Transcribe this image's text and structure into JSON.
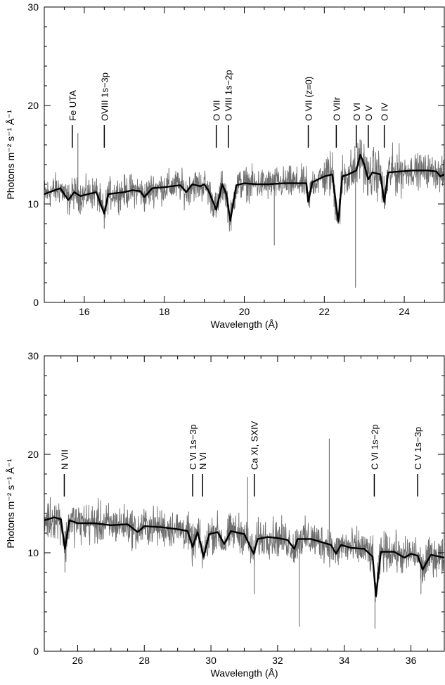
{
  "chart_data": [
    {
      "type": "line",
      "title": "",
      "xlabel": "Wavelength (Å)",
      "ylabel": "Photons m⁻² s⁻¹ Å⁻¹",
      "xlim": [
        15,
        25
      ],
      "ylim": [
        0,
        30
      ],
      "xticks": [
        16,
        18,
        20,
        22,
        24
      ],
      "yticks": [
        0,
        10,
        20,
        30
      ],
      "grid": false,
      "legend": "none",
      "series": [
        {
          "role": "data",
          "color": "#6e6e6e",
          "x": [
            15.0,
            15.5,
            15.84,
            16.0,
            16.5,
            17.0,
            17.5,
            18.0,
            18.5,
            19.0,
            19.3,
            19.5,
            19.65,
            20.0,
            20.5,
            20.75,
            21.0,
            21.6,
            22.0,
            22.35,
            22.78,
            23.0,
            23.5,
            24.0,
            24.5,
            25.0
          ],
          "y": [
            11.5,
            11.8,
            17.2,
            11.0,
            7.5,
            11.6,
            11.3,
            11.9,
            11.6,
            12.0,
            9.3,
            12.1,
            8.2,
            11.9,
            12.3,
            5.8,
            12.0,
            9.8,
            12.8,
            8.0,
            1.5,
            13.5,
            9.5,
            13.2,
            13.4,
            13.0
          ]
        },
        {
          "role": "model",
          "color": "#000000",
          "x": [
            15.0,
            15.2,
            15.4,
            15.6,
            15.75,
            15.9,
            16.1,
            16.3,
            16.5,
            16.6,
            16.8,
            17.0,
            17.2,
            17.4,
            17.5,
            17.7,
            18.0,
            18.2,
            18.4,
            18.55,
            18.7,
            18.9,
            19.0,
            19.1,
            19.3,
            19.45,
            19.55,
            19.65,
            19.8,
            20.0,
            20.3,
            20.6,
            21.0,
            21.3,
            21.55,
            21.6,
            21.7,
            22.0,
            22.2,
            22.35,
            22.45,
            22.6,
            22.8,
            22.9,
            23.0,
            23.1,
            23.2,
            23.4,
            23.5,
            23.6,
            23.9,
            24.2,
            24.6,
            24.8,
            24.9,
            25.0
          ],
          "y": [
            11.0,
            11.3,
            11.6,
            10.4,
            11.2,
            10.8,
            11.0,
            11.2,
            9.0,
            11.0,
            11.1,
            11.2,
            11.4,
            11.3,
            10.7,
            11.6,
            11.7,
            11.8,
            11.9,
            11.2,
            12.0,
            11.8,
            12.0,
            11.4,
            9.4,
            12.0,
            11.0,
            8.3,
            11.9,
            12.1,
            12.0,
            12.0,
            12.1,
            12.1,
            12.1,
            10.2,
            12.2,
            12.8,
            13.0,
            8.2,
            12.8,
            13.0,
            13.4,
            15.0,
            14.0,
            12.5,
            13.2,
            13.0,
            10.2,
            13.2,
            13.3,
            13.4,
            13.4,
            13.3,
            12.8,
            13.0
          ]
        }
      ],
      "annotations": [
        {
          "label": "Fe UTA",
          "x": 15.7
        },
        {
          "label": "OVIII 1s−3p",
          "x": 16.5
        },
        {
          "label": "O VII",
          "x": 19.3
        },
        {
          "label": "O VIII 1s−2p",
          "x": 19.6
        },
        {
          "label": "O VII (z=0)",
          "x": 21.6
        },
        {
          "label": "O VIIr",
          "x": 22.3
        },
        {
          "label": "O VI",
          "x": 22.8
        },
        {
          "label": "O V",
          "x": 23.1
        },
        {
          "label": "O IV",
          "x": 23.5
        }
      ]
    },
    {
      "type": "line",
      "title": "",
      "xlabel": "Wavelength (Å)",
      "ylabel": "Photons m⁻² s⁻¹ Å⁻¹",
      "xlim": [
        25,
        37
      ],
      "ylim": [
        0,
        30
      ],
      "xticks": [
        26,
        28,
        30,
        32,
        34,
        36
      ],
      "yticks": [
        0,
        10,
        20,
        30
      ],
      "grid": false,
      "legend": "none",
      "series": [
        {
          "role": "data",
          "color": "#6e6e6e",
          "x": [
            25.0,
            25.3,
            25.62,
            26.0,
            26.5,
            27.0,
            27.5,
            28.0,
            28.5,
            29.0,
            29.45,
            29.78,
            30.0,
            30.5,
            31.0,
            31.1,
            31.3,
            31.6,
            32.0,
            32.5,
            32.65,
            33.0,
            33.35,
            33.55,
            33.75,
            34.0,
            34.5,
            34.92,
            35.5,
            36.0,
            36.3,
            36.7,
            37.0
          ],
          "y": [
            13.3,
            13.8,
            8.0,
            13.2,
            13.0,
            12.9,
            12.6,
            12.4,
            12.8,
            12.2,
            10.2,
            9.3,
            12.2,
            12.0,
            12.0,
            17.7,
            5.8,
            11.6,
            11.3,
            10.5,
            2.5,
            11.1,
            10.8,
            21.6,
            10.0,
            10.8,
            10.3,
            2.3,
            10.0,
            9.8,
            5.8,
            9.6,
            9.3
          ]
        },
        {
          "role": "model",
          "color": "#000000",
          "x": [
            25.0,
            25.3,
            25.5,
            25.62,
            25.75,
            26.0,
            26.5,
            27.0,
            27.5,
            27.8,
            28.0,
            28.5,
            29.0,
            29.3,
            29.45,
            29.6,
            29.78,
            29.95,
            30.2,
            30.4,
            30.6,
            31.0,
            31.28,
            31.4,
            31.7,
            32.0,
            32.3,
            32.5,
            32.6,
            33.0,
            33.4,
            33.6,
            33.75,
            33.9,
            34.2,
            34.6,
            34.85,
            34.95,
            35.1,
            35.5,
            35.8,
            36.0,
            36.2,
            36.35,
            36.6,
            37.0
          ],
          "y": [
            13.3,
            13.6,
            13.4,
            10.4,
            13.3,
            13.0,
            13.0,
            12.8,
            12.9,
            12.1,
            12.7,
            12.6,
            12.4,
            12.2,
            10.6,
            12.1,
            9.6,
            11.9,
            12.1,
            10.9,
            12.2,
            11.9,
            9.9,
            11.4,
            11.6,
            11.5,
            11.3,
            10.4,
            11.4,
            11.4,
            11.0,
            10.8,
            9.9,
            10.8,
            10.5,
            10.4,
            9.6,
            5.6,
            10.1,
            10.1,
            9.5,
            9.9,
            9.7,
            8.3,
            9.8,
            9.5
          ]
        }
      ],
      "annotations": [
        {
          "label": "N VII",
          "x": 25.6
        },
        {
          "label": "C VI 1s−3p",
          "x": 29.45
        },
        {
          "label": "N VI",
          "x": 29.75
        },
        {
          "label": "Ca XI, SXIV",
          "x": 31.3
        },
        {
          "label": "C VI 1s−2p",
          "x": 34.9
        },
        {
          "label": "C V 1s−3p",
          "x": 36.2
        }
      ]
    }
  ]
}
